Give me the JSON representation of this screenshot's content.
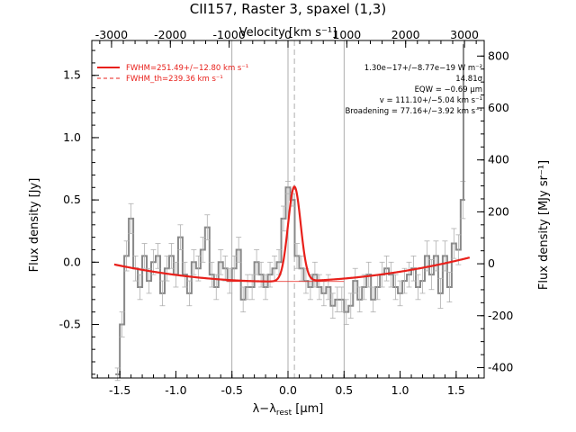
{
  "chart_data": {
    "type": "line",
    "title": "CII157, Raster 3, spaxel (1,3)",
    "xlabel": "λ−λrest [μm]",
    "xlabel_parts": {
      "main": "λ−λ",
      "sub": "rest",
      "unit": " [μm]"
    },
    "ylabel_left": "Flux density [Jy]",
    "ylabel_right": "Flux density [MJy sr⁻¹]",
    "xlabel_top": "Velocity [km s⁻¹]",
    "xlim": [
      -1.75,
      1.75
    ],
    "ylim_left": [
      -0.93,
      1.78
    ],
    "ylim_right": [
      -440,
      860
    ],
    "x_ticks": [
      "-1.5",
      "-1.0",
      "-0.5",
      "0.0",
      "0.5",
      "1.0",
      "1.5"
    ],
    "x_tick_values": [
      -1.5,
      -1.0,
      -0.5,
      0.0,
      0.5,
      1.0,
      1.5
    ],
    "y_ticks_left": [
      "-0.5",
      "0.0",
      "0.5",
      "1.0",
      "1.5"
    ],
    "y_tick_values_left": [
      -0.5,
      0.0,
      0.5,
      1.0,
      1.5
    ],
    "y_ticks_right": [
      "-400",
      "-200",
      "0",
      "200",
      "400",
      "600",
      "800"
    ],
    "y_tick_values_right": [
      -400,
      -200,
      0,
      200,
      400,
      600,
      800
    ],
    "velocity_ticks": [
      "-3000",
      "-2000",
      "-1000",
      "0",
      "1000",
      "2000",
      "3000"
    ],
    "velocity_tick_values": [
      -3000,
      -2000,
      -1000,
      0,
      1000,
      2000,
      3000
    ],
    "velocity_per_um": 1906,
    "vertical_lines": [
      -0.5,
      0.0,
      0.5
    ],
    "rest_line": 0.057,
    "legend": [
      {
        "label": "FWHM=251.49+/−12.80 km s⁻¹",
        "style": "solid",
        "color": "#e8201b"
      },
      {
        "label": "FWHM_th=239.36 km s⁻¹",
        "style": "dashed",
        "color": "#e8201b"
      }
    ],
    "annotations": [
      "1.30e−17+/−8.77e−19 W m⁻²",
      "14.81σ",
      "EQW = −0.69 μm",
      "v = 111.10+/−5.04 km s⁻¹",
      "Broadening = 77.16+/−3.92 km s⁻¹"
    ],
    "data_x": [
      -1.52,
      -1.48,
      -1.44,
      -1.4,
      -1.36,
      -1.32,
      -1.28,
      -1.24,
      -1.2,
      -1.16,
      -1.12,
      -1.08,
      -1.04,
      -1.0,
      -0.96,
      -0.92,
      -0.88,
      -0.84,
      -0.8,
      -0.76,
      -0.72,
      -0.68,
      -0.64,
      -0.6,
      -0.56,
      -0.52,
      -0.48,
      -0.44,
      -0.4,
      -0.36,
      -0.32,
      -0.28,
      -0.24,
      -0.2,
      -0.16,
      -0.12,
      -0.08,
      -0.04,
      0.0,
      0.04,
      0.08,
      0.12,
      0.16,
      0.2,
      0.24,
      0.28,
      0.32,
      0.36,
      0.4,
      0.44,
      0.48,
      0.52,
      0.56,
      0.6,
      0.64,
      0.68,
      0.72,
      0.76,
      0.8,
      0.84,
      0.88,
      0.92,
      0.96,
      1.0,
      1.04,
      1.08,
      1.12,
      1.16,
      1.2,
      1.24,
      1.28,
      1.32,
      1.36,
      1.4,
      1.44,
      1.48,
      1.52,
      1.56
    ],
    "data_y": [
      -0.9,
      -0.5,
      0.05,
      0.35,
      -0.05,
      -0.2,
      0.05,
      -0.15,
      0.0,
      0.05,
      -0.25,
      -0.05,
      0.05,
      -0.1,
      0.2,
      -0.1,
      -0.25,
      0.0,
      -0.05,
      0.1,
      0.28,
      -0.1,
      -0.2,
      0.0,
      -0.05,
      -0.15,
      -0.05,
      0.1,
      -0.3,
      -0.2,
      -0.2,
      0.0,
      -0.1,
      -0.2,
      -0.1,
      -0.05,
      0.0,
      0.35,
      0.6,
      0.5,
      0.05,
      -0.05,
      -0.15,
      -0.2,
      -0.1,
      -0.2,
      -0.25,
      -0.2,
      -0.35,
      -0.3,
      -0.3,
      -0.4,
      -0.35,
      -0.15,
      -0.3,
      -0.2,
      -0.1,
      -0.3,
      -0.2,
      -0.1,
      -0.05,
      -0.1,
      -0.2,
      -0.25,
      -0.15,
      -0.1,
      -0.05,
      -0.2,
      -0.15,
      0.05,
      -0.1,
      0.05,
      -0.25,
      0.05,
      -0.2,
      0.15,
      0.1,
      0.5
    ],
    "data_err": [
      0.05,
      0.1,
      0.12,
      0.12,
      0.1,
      0.1,
      0.1,
      0.1,
      0.1,
      0.1,
      0.1,
      0.1,
      0.1,
      0.1,
      0.1,
      0.1,
      0.1,
      0.1,
      0.1,
      0.1,
      0.1,
      0.1,
      0.1,
      0.1,
      0.1,
      0.1,
      0.1,
      0.1,
      0.1,
      0.1,
      0.1,
      0.1,
      0.1,
      0.1,
      0.1,
      0.1,
      0.1,
      0.1,
      0.05,
      0.05,
      0.1,
      0.1,
      0.1,
      0.1,
      0.1,
      0.1,
      0.1,
      0.1,
      0.1,
      0.1,
      0.1,
      0.1,
      0.1,
      0.1,
      0.1,
      0.1,
      0.1,
      0.1,
      0.1,
      0.1,
      0.1,
      0.1,
      0.1,
      0.1,
      0.1,
      0.1,
      0.1,
      0.1,
      0.1,
      0.12,
      0.12,
      0.12,
      0.12,
      0.12,
      0.12,
      0.12,
      0.12,
      0.15
    ],
    "spike_x": 1.565,
    "spike_top": 1.75,
    "continuum_coeffs": {
      "offset": -0.155,
      "center": -0.1,
      "a": 0.065
    },
    "gaussian": {
      "center": 0.057,
      "amplitude": 0.76,
      "sigma": 0.056
    },
    "fit_range": [
      -1.55,
      1.62
    ],
    "colors": {
      "data": "#888888",
      "fit": "#e8201b",
      "guide": "#999999"
    }
  }
}
